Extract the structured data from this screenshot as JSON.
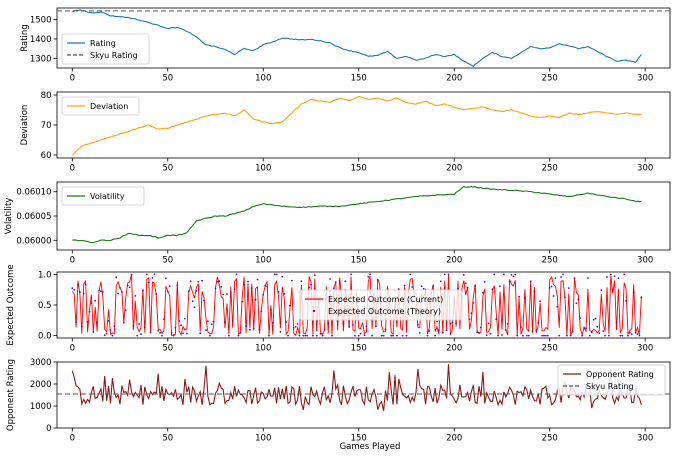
{
  "figure": {
    "xlabel": "Games Played",
    "x_ticks": [
      0,
      50,
      100,
      150,
      200,
      250,
      300
    ],
    "xlim": [
      -8,
      313
    ]
  },
  "chart_data": [
    {
      "type": "line",
      "id": "rating",
      "ylabel": "Rating",
      "ylim": [
        1250,
        1560
      ],
      "y_ticks": [
        1300,
        1400,
        1500
      ],
      "legend_position": "lower-left",
      "series": [
        {
          "name": "Rating",
          "color": "#1f77b4",
          "style": "solid",
          "x": [
            0,
            4,
            10,
            15,
            20,
            30,
            38,
            45,
            50,
            55,
            60,
            65,
            70,
            75,
            80,
            85,
            90,
            95,
            100,
            105,
            110,
            115,
            120,
            125,
            130,
            135,
            140,
            145,
            150,
            155,
            160,
            165,
            170,
            175,
            180,
            185,
            190,
            195,
            200,
            205,
            210,
            215,
            220,
            225,
            230,
            235,
            240,
            245,
            250,
            255,
            260,
            265,
            270,
            275,
            280,
            285,
            290,
            295,
            298
          ],
          "values": [
            1540,
            1550,
            1535,
            1540,
            1520,
            1510,
            1490,
            1470,
            1455,
            1460,
            1440,
            1410,
            1370,
            1360,
            1345,
            1320,
            1350,
            1340,
            1370,
            1385,
            1405,
            1400,
            1395,
            1398,
            1390,
            1380,
            1355,
            1340,
            1330,
            1310,
            1315,
            1335,
            1300,
            1310,
            1290,
            1300,
            1320,
            1310,
            1320,
            1285,
            1260,
            1300,
            1330,
            1310,
            1300,
            1330,
            1360,
            1350,
            1355,
            1375,
            1365,
            1350,
            1360,
            1335,
            1310,
            1285,
            1290,
            1280,
            1320
          ]
        },
        {
          "name": "Skyu Rating",
          "color": "#555555",
          "style": "dashed",
          "constant": 1545
        }
      ]
    },
    {
      "type": "line",
      "id": "deviation",
      "ylabel": "Deviation",
      "ylim": [
        59,
        81
      ],
      "y_ticks": [
        60,
        70,
        80
      ],
      "legend_position": "upper-left",
      "series": [
        {
          "name": "Deviation",
          "color": "#ff9f0e",
          "style": "solid",
          "x": [
            0,
            5,
            10,
            15,
            20,
            25,
            30,
            35,
            40,
            45,
            50,
            55,
            60,
            65,
            70,
            75,
            80,
            85,
            90,
            95,
            100,
            105,
            110,
            115,
            120,
            125,
            130,
            135,
            140,
            145,
            150,
            155,
            160,
            165,
            170,
            175,
            180,
            185,
            190,
            195,
            200,
            205,
            210,
            215,
            220,
            225,
            230,
            235,
            240,
            245,
            250,
            255,
            260,
            265,
            270,
            275,
            280,
            285,
            290,
            295,
            298
          ],
          "values": [
            60,
            63,
            64,
            65,
            66,
            67,
            68,
            69,
            70,
            68.5,
            69,
            70,
            71,
            72,
            73,
            73.5,
            74,
            73,
            75,
            72,
            71,
            70.5,
            71,
            74,
            77,
            78.5,
            78,
            77.5,
            79,
            78,
            79.5,
            78.5,
            79,
            78,
            79,
            77.5,
            77,
            78,
            76.5,
            77,
            76,
            75,
            75.5,
            76,
            75,
            74.5,
            75,
            74,
            73,
            72.5,
            73,
            72.5,
            74,
            73.5,
            74,
            74.5,
            74,
            73.5,
            74,
            73.5,
            73.5
          ]
        }
      ]
    },
    {
      "type": "line",
      "id": "volatility",
      "ylabel": "Volatility",
      "ylim": [
        0.05998,
        0.06012
      ],
      "y_ticks": [
        0.06,
        0.06005,
        0.0601
      ],
      "y_tick_labels": [
        "0.06000",
        "0.06005",
        "0.06010"
      ],
      "legend_position": "upper-left",
      "series": [
        {
          "name": "Volatility",
          "color": "#1a7a1a",
          "style": "solid",
          "x": [
            0,
            5,
            10,
            15,
            20,
            25,
            30,
            35,
            40,
            45,
            50,
            55,
            60,
            65,
            70,
            75,
            80,
            85,
            90,
            95,
            100,
            110,
            120,
            130,
            140,
            150,
            160,
            170,
            180,
            190,
            200,
            205,
            210,
            220,
            230,
            240,
            250,
            260,
            270,
            280,
            290,
            295,
            298
          ],
          "values": [
            0.06,
            0.06,
            0.059995,
            0.06,
            0.06,
            0.060005,
            0.060015,
            0.06001,
            0.06001,
            0.060005,
            0.06001,
            0.06001,
            0.060015,
            0.06004,
            0.060045,
            0.06005,
            0.06005,
            0.060055,
            0.06006,
            0.06007,
            0.060075,
            0.06007,
            0.060068,
            0.06007,
            0.06007,
            0.060075,
            0.06008,
            0.060085,
            0.06009,
            0.060093,
            0.060095,
            0.06011,
            0.06011,
            0.060105,
            0.060103,
            0.0601,
            0.060095,
            0.06009,
            0.060097,
            0.06009,
            0.060085,
            0.06008,
            0.06008
          ]
        }
      ]
    },
    {
      "type": "line",
      "id": "expected-outcome",
      "ylabel": "Expected Outcome",
      "ylim": [
        -0.04,
        1.04
      ],
      "y_ticks": [
        0,
        0.5,
        1
      ],
      "y_tick_labels": [
        "0.0",
        "0.5",
        "1.0"
      ],
      "legend_position": "center",
      "series": [
        {
          "name": "Expected Outcome (Current)",
          "color": "#ff0000",
          "style": "solid",
          "generated": "oscillating 0 to 1 per game"
        },
        {
          "name": "Expected Outcome (Theory)",
          "color": "#6a0a9a",
          "style": "dots",
          "generated": "scatter 0 to 1 per game"
        }
      ]
    },
    {
      "type": "line",
      "id": "opponent-rating",
      "ylabel": "Opponent Rating",
      "ylim": [
        0,
        3000
      ],
      "y_ticks": [
        0,
        1000,
        2000,
        3000
      ],
      "legend_position": "upper-right",
      "series": [
        {
          "name": "Opponent Rating",
          "color": "#8b1a1a",
          "style": "solid",
          "generated": "noisy around 1500, range 400-2900"
        },
        {
          "name": "Skyu Rating",
          "color": "#555555",
          "style": "dashed",
          "constant": 1545
        }
      ]
    }
  ]
}
